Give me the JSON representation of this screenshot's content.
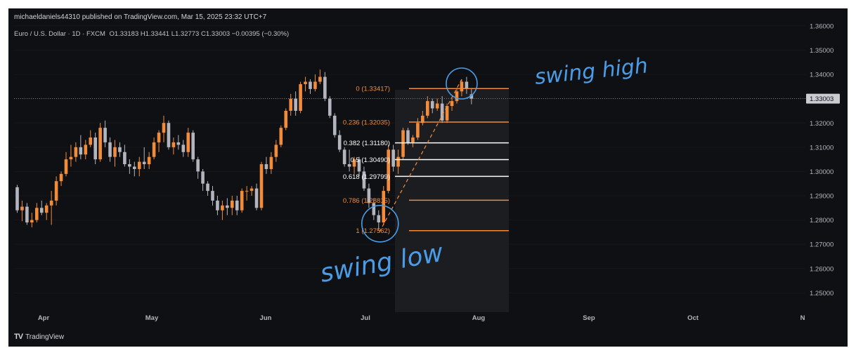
{
  "header": {
    "published": "michaeldaniels44310 published on TradingView.com, Mar 15, 2025 23:32 UTC+7"
  },
  "symbol": {
    "name": "Euro / U.S. Dollar · 1D · FXCM",
    "ohlc": "O1.33183  H1.33441  L1.32773  C1.33003  −0.00395 (−0.30%)"
  },
  "footer": {
    "logo": "TV",
    "brand": "TradingView"
  },
  "colors": {
    "up": "#f28c3a",
    "down": "#b2b5be",
    "bg": "#0f1013",
    "annotation": "#4b9ce6",
    "fib_orange": "#f28c3a",
    "fib_white": "#ffffff"
  },
  "chart_data": {
    "type": "candlestick",
    "price_axis": {
      "ylim": [
        1.242,
        1.362
      ],
      "ticks": [
        "1.36000",
        "1.35000",
        "1.34000",
        "1.33000",
        "1.32000",
        "1.31000",
        "1.30000",
        "1.29000",
        "1.28000",
        "1.27000",
        "1.26000",
        "1.25000"
      ],
      "last_price": "1.33003",
      "last_value": 1.33003
    },
    "time_axis": {
      "labels": [
        "Apr",
        "May",
        "Jun",
        "Jul",
        "Aug",
        "Sep",
        "Oct",
        "N"
      ]
    },
    "candles": [
      {
        "o": 1.2935,
        "h": 1.2945,
        "l": 1.283,
        "c": 1.284
      },
      {
        "o": 1.284,
        "h": 1.288,
        "l": 1.2795,
        "c": 1.2855
      },
      {
        "o": 1.2855,
        "h": 1.287,
        "l": 1.278,
        "c": 1.279
      },
      {
        "o": 1.279,
        "h": 1.283,
        "l": 1.277,
        "c": 1.28
      },
      {
        "o": 1.28,
        "h": 1.287,
        "l": 1.279,
        "c": 1.285
      },
      {
        "o": 1.285,
        "h": 1.288,
        "l": 1.282,
        "c": 1.283
      },
      {
        "o": 1.283,
        "h": 1.287,
        "l": 1.28,
        "c": 1.286
      },
      {
        "o": 1.286,
        "h": 1.292,
        "l": 1.278,
        "c": 1.288
      },
      {
        "o": 1.288,
        "h": 1.298,
        "l": 1.286,
        "c": 1.296
      },
      {
        "o": 1.296,
        "h": 1.3,
        "l": 1.294,
        "c": 1.299
      },
      {
        "o": 1.299,
        "h": 1.308,
        "l": 1.298,
        "c": 1.305
      },
      {
        "o": 1.305,
        "h": 1.311,
        "l": 1.302,
        "c": 1.306
      },
      {
        "o": 1.306,
        "h": 1.312,
        "l": 1.304,
        "c": 1.31
      },
      {
        "o": 1.31,
        "h": 1.315,
        "l": 1.305,
        "c": 1.307
      },
      {
        "o": 1.307,
        "h": 1.313,
        "l": 1.305,
        "c": 1.311
      },
      {
        "o": 1.311,
        "h": 1.317,
        "l": 1.31,
        "c": 1.314
      },
      {
        "o": 1.314,
        "h": 1.316,
        "l": 1.303,
        "c": 1.305
      },
      {
        "o": 1.305,
        "h": 1.32,
        "l": 1.304,
        "c": 1.318
      },
      {
        "o": 1.318,
        "h": 1.321,
        "l": 1.31,
        "c": 1.312
      },
      {
        "o": 1.312,
        "h": 1.314,
        "l": 1.304,
        "c": 1.306
      },
      {
        "o": 1.306,
        "h": 1.313,
        "l": 1.302,
        "c": 1.31
      },
      {
        "o": 1.31,
        "h": 1.312,
        "l": 1.306,
        "c": 1.308
      },
      {
        "o": 1.308,
        "h": 1.311,
        "l": 1.302,
        "c": 1.303
      },
      {
        "o": 1.303,
        "h": 1.305,
        "l": 1.299,
        "c": 1.302
      },
      {
        "o": 1.302,
        "h": 1.304,
        "l": 1.298,
        "c": 1.301
      },
      {
        "o": 1.301,
        "h": 1.306,
        "l": 1.298,
        "c": 1.304
      },
      {
        "o": 1.304,
        "h": 1.31,
        "l": 1.301,
        "c": 1.303
      },
      {
        "o": 1.303,
        "h": 1.308,
        "l": 1.301,
        "c": 1.306
      },
      {
        "o": 1.306,
        "h": 1.314,
        "l": 1.305,
        "c": 1.312
      },
      {
        "o": 1.312,
        "h": 1.317,
        "l": 1.308,
        "c": 1.316
      },
      {
        "o": 1.316,
        "h": 1.323,
        "l": 1.312,
        "c": 1.32
      },
      {
        "o": 1.32,
        "h": 1.321,
        "l": 1.309,
        "c": 1.31
      },
      {
        "o": 1.31,
        "h": 1.314,
        "l": 1.307,
        "c": 1.312
      },
      {
        "o": 1.312,
        "h": 1.315,
        "l": 1.309,
        "c": 1.311
      },
      {
        "o": 1.311,
        "h": 1.313,
        "l": 1.306,
        "c": 1.308
      },
      {
        "o": 1.308,
        "h": 1.318,
        "l": 1.306,
        "c": 1.316
      },
      {
        "o": 1.316,
        "h": 1.317,
        "l": 1.304,
        "c": 1.305
      },
      {
        "o": 1.305,
        "h": 1.306,
        "l": 1.297,
        "c": 1.3
      },
      {
        "o": 1.3,
        "h": 1.301,
        "l": 1.292,
        "c": 1.295
      },
      {
        "o": 1.295,
        "h": 1.296,
        "l": 1.29,
        "c": 1.292
      },
      {
        "o": 1.292,
        "h": 1.294,
        "l": 1.286,
        "c": 1.288
      },
      {
        "o": 1.288,
        "h": 1.29,
        "l": 1.282,
        "c": 1.284
      },
      {
        "o": 1.284,
        "h": 1.288,
        "l": 1.28,
        "c": 1.286
      },
      {
        "o": 1.286,
        "h": 1.289,
        "l": 1.282,
        "c": 1.285
      },
      {
        "o": 1.285,
        "h": 1.29,
        "l": 1.282,
        "c": 1.288
      },
      {
        "o": 1.288,
        "h": 1.29,
        "l": 1.282,
        "c": 1.284
      },
      {
        "o": 1.284,
        "h": 1.293,
        "l": 1.283,
        "c": 1.292
      },
      {
        "o": 1.292,
        "h": 1.294,
        "l": 1.288,
        "c": 1.292
      },
      {
        "o": 1.292,
        "h": 1.294,
        "l": 1.29,
        "c": 1.293
      },
      {
        "o": 1.293,
        "h": 1.295,
        "l": 1.284,
        "c": 1.285
      },
      {
        "o": 1.285,
        "h": 1.304,
        "l": 1.284,
        "c": 1.303
      },
      {
        "o": 1.303,
        "h": 1.306,
        "l": 1.299,
        "c": 1.301
      },
      {
        "o": 1.301,
        "h": 1.308,
        "l": 1.299,
        "c": 1.306
      },
      {
        "o": 1.306,
        "h": 1.313,
        "l": 1.304,
        "c": 1.311
      },
      {
        "o": 1.311,
        "h": 1.319,
        "l": 1.31,
        "c": 1.318
      },
      {
        "o": 1.318,
        "h": 1.326,
        "l": 1.317,
        "c": 1.325
      },
      {
        "o": 1.325,
        "h": 1.332,
        "l": 1.323,
        "c": 1.33
      },
      {
        "o": 1.33,
        "h": 1.333,
        "l": 1.323,
        "c": 1.325
      },
      {
        "o": 1.325,
        "h": 1.337,
        "l": 1.324,
        "c": 1.336
      },
      {
        "o": 1.336,
        "h": 1.339,
        "l": 1.333,
        "c": 1.337
      },
      {
        "o": 1.337,
        "h": 1.338,
        "l": 1.332,
        "c": 1.334
      },
      {
        "o": 1.334,
        "h": 1.34,
        "l": 1.333,
        "c": 1.337
      },
      {
        "o": 1.337,
        "h": 1.342,
        "l": 1.336,
        "c": 1.339
      },
      {
        "o": 1.339,
        "h": 1.341,
        "l": 1.329,
        "c": 1.33
      },
      {
        "o": 1.33,
        "h": 1.331,
        "l": 1.322,
        "c": 1.323
      },
      {
        "o": 1.323,
        "h": 1.324,
        "l": 1.314,
        "c": 1.315
      },
      {
        "o": 1.315,
        "h": 1.317,
        "l": 1.308,
        "c": 1.309
      },
      {
        "o": 1.309,
        "h": 1.31,
        "l": 1.302,
        "c": 1.303
      },
      {
        "o": 1.303,
        "h": 1.309,
        "l": 1.3,
        "c": 1.302
      },
      {
        "o": 1.302,
        "h": 1.306,
        "l": 1.299,
        "c": 1.305
      },
      {
        "o": 1.305,
        "h": 1.306,
        "l": 1.298,
        "c": 1.3
      },
      {
        "o": 1.3,
        "h": 1.302,
        "l": 1.292,
        "c": 1.293
      },
      {
        "o": 1.293,
        "h": 1.295,
        "l": 1.285,
        "c": 1.287
      },
      {
        "o": 1.287,
        "h": 1.289,
        "l": 1.28,
        "c": 1.282
      },
      {
        "o": 1.282,
        "h": 1.284,
        "l": 1.2756,
        "c": 1.279
      },
      {
        "o": 1.279,
        "h": 1.294,
        "l": 1.278,
        "c": 1.292
      },
      {
        "o": 1.292,
        "h": 1.311,
        "l": 1.291,
        "c": 1.309
      },
      {
        "o": 1.309,
        "h": 1.311,
        "l": 1.3,
        "c": 1.302
      },
      {
        "o": 1.302,
        "h": 1.309,
        "l": 1.299,
        "c": 1.306
      },
      {
        "o": 1.306,
        "h": 1.318,
        "l": 1.305,
        "c": 1.317
      },
      {
        "o": 1.317,
        "h": 1.318,
        "l": 1.311,
        "c": 1.312
      },
      {
        "o": 1.312,
        "h": 1.315,
        "l": 1.31,
        "c": 1.314
      },
      {
        "o": 1.314,
        "h": 1.322,
        "l": 1.313,
        "c": 1.32
      },
      {
        "o": 1.32,
        "h": 1.325,
        "l": 1.319,
        "c": 1.323
      },
      {
        "o": 1.323,
        "h": 1.331,
        "l": 1.322,
        "c": 1.329
      },
      {
        "o": 1.329,
        "h": 1.33,
        "l": 1.324,
        "c": 1.326
      },
      {
        "o": 1.326,
        "h": 1.33,
        "l": 1.325,
        "c": 1.328
      },
      {
        "o": 1.328,
        "h": 1.331,
        "l": 1.32,
        "c": 1.321
      },
      {
        "o": 1.321,
        "h": 1.328,
        "l": 1.32,
        "c": 1.327
      },
      {
        "o": 1.327,
        "h": 1.33,
        "l": 1.325,
        "c": 1.329
      },
      {
        "o": 1.329,
        "h": 1.334,
        "l": 1.328,
        "c": 1.333
      },
      {
        "o": 1.333,
        "h": 1.338,
        "l": 1.331,
        "c": 1.337
      },
      {
        "o": 1.337,
        "h": 1.339,
        "l": 1.332,
        "c": 1.334
      },
      {
        "o": 1.3318,
        "h": 1.3344,
        "l": 1.3277,
        "c": 1.33
      }
    ],
    "fib": {
      "levels": [
        {
          "label": "0 (1.33417)",
          "value": 1.33417,
          "color": "#f28c3a"
        },
        {
          "label": "0.236 (1.32035)",
          "value": 1.32035,
          "color": "#f28c3a"
        },
        {
          "label": "0.382 (1.31180)",
          "value": 1.3118,
          "color": "#ffffff"
        },
        {
          "label": "0.5 (1.30490)",
          "value": 1.3049,
          "color": "#ffffff"
        },
        {
          "label": "0.618 (1.29799)",
          "value": 1.29799,
          "color": "#ffffff"
        },
        {
          "label": "0.786 (1.28815)",
          "value": 1.28815,
          "color": "#f28c3a"
        },
        {
          "label": "1 (1.27562)",
          "value": 1.27562,
          "color": "#f28c3a"
        }
      ]
    },
    "annotations": [
      {
        "text": "swing high"
      },
      {
        "text": "swing low"
      }
    ]
  }
}
